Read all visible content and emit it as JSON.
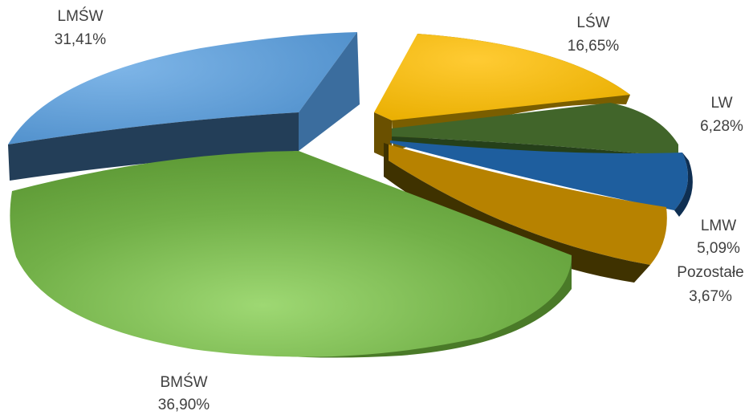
{
  "chart_data": {
    "type": "pie",
    "title": "",
    "style": "3d-exploded",
    "slices": [
      {
        "label": "LŚW",
        "value": 16.65,
        "value_label": "16,65%",
        "color": "#F5B800"
      },
      {
        "label": "LW",
        "value": 6.28,
        "value_label": "6,28%",
        "color": "#41652A"
      },
      {
        "label": "LMW",
        "value": 5.09,
        "value_label": "5,09%",
        "color": "#2566A8"
      },
      {
        "label": "Pozostałe",
        "value": 3.67,
        "value_label": "3,67%",
        "color": "#C59000"
      },
      {
        "label": "BMŚW",
        "value": 36.9,
        "value_label": "36,90%",
        "color": "#6FAE45"
      },
      {
        "label": "LMŚW",
        "value": 31.41,
        "value_label": "31,41%",
        "color": "#5B9BD5"
      }
    ]
  }
}
